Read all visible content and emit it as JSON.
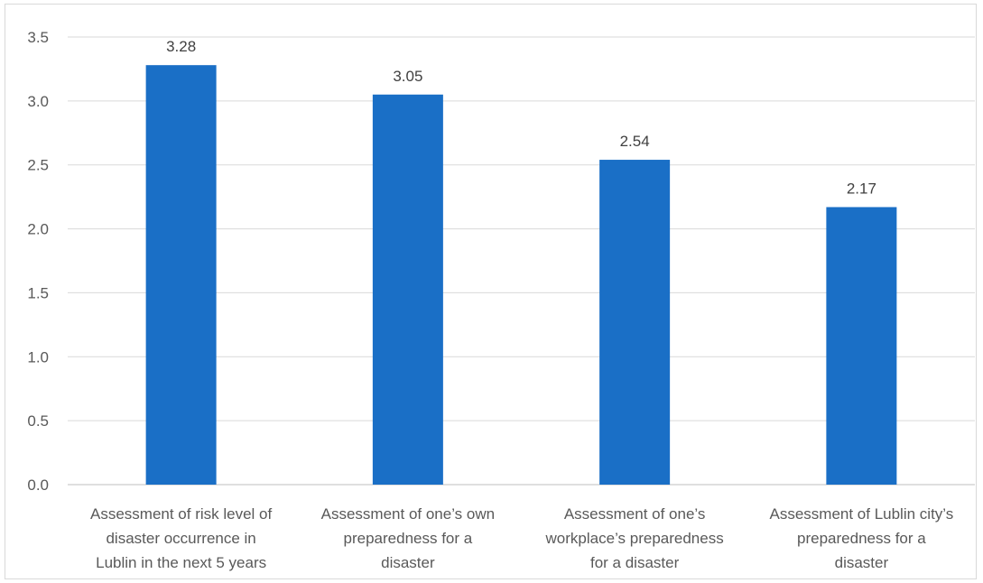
{
  "chart_data": {
    "type": "bar",
    "title": "",
    "xlabel": "",
    "ylabel": "",
    "ylim": [
      0,
      3.5
    ],
    "yticks": [
      "0.0",
      "0.5",
      "1.0",
      "1.5",
      "2.0",
      "2.5",
      "3.0",
      "3.5"
    ],
    "grid": true,
    "bar_color": "#1a6fc6",
    "categories": [
      [
        "Assessment of risk level of",
        "disaster occurrence in",
        "Lublin in the next 5 years"
      ],
      [
        "Assessment of one’s own",
        "preparedness for a",
        "disaster"
      ],
      [
        "Assessment of one’s",
        "workplace’s preparedness",
        "for a disaster"
      ],
      [
        "Assessment of Lublin city’s",
        "preparedness for a",
        "disaster"
      ]
    ],
    "values": [
      3.28,
      3.05,
      2.54,
      2.17
    ],
    "data_labels": [
      "3.28",
      "3.05",
      "2.54",
      "2.17"
    ]
  }
}
